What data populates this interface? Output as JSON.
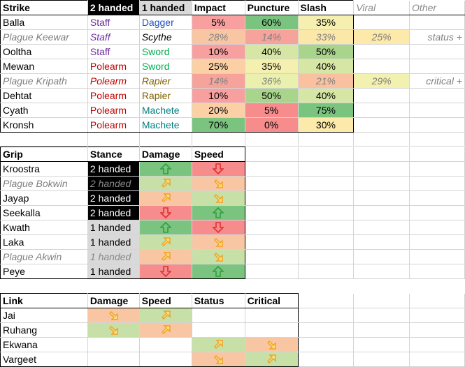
{
  "strike": {
    "headers": [
      "Strike",
      "2 handed",
      "1 handed",
      "Impact",
      "Puncture",
      "Slash",
      "Viral",
      "Other"
    ],
    "rows": [
      {
        "name": "Balla",
        "two": "Staff",
        "twoColor": "#7030a0",
        "one": "Dagger",
        "oneColor": "#1f4fbf",
        "impact": "5%",
        "impactBg": "#f8a0a0",
        "puncture": "60%",
        "punctureBg": "#7bc47f",
        "slash": "35%",
        "slashBg": "#f5f0b0",
        "viral": "",
        "viralBg": "",
        "other": "",
        "italic": false
      },
      {
        "name": "Plague Keewar",
        "two": "Staff",
        "twoColor": "#7030a0",
        "one": "Scythe",
        "oneColor": "#000000",
        "impact": "28%",
        "impactBg": "#f9c6a3",
        "puncture": "14%",
        "punctureBg": "#f6a39c",
        "slash": "33%",
        "slashBg": "#fbe8a8",
        "viral": "25%",
        "viralBg": "#fde9a9",
        "other": "status +",
        "italic": true
      },
      {
        "name": "Ooltha",
        "two": "Staff",
        "twoColor": "#7030a0",
        "one": "Sword",
        "oneColor": "#00b050",
        "impact": "10%",
        "impactBg": "#f8a0a0",
        "puncture": "40%",
        "punctureBg": "#d6e6a4",
        "slash": "50%",
        "slashBg": "#a9d48c",
        "viral": "",
        "viralBg": "",
        "other": "",
        "italic": false
      },
      {
        "name": "Mewan",
        "two": "Polearm",
        "twoColor": "#c00000",
        "one": "Sword",
        "oneColor": "#00b050",
        "impact": "25%",
        "impactBg": "#fbd0a5",
        "puncture": "35%",
        "punctureBg": "#f5f0b0",
        "slash": "40%",
        "slashBg": "#d6e6a4",
        "viral": "",
        "viralBg": "",
        "other": "",
        "italic": false
      },
      {
        "name": "Plague Kripath",
        "two": "Polearm",
        "twoColor": "#c00000",
        "one": "Rapier",
        "oneColor": "#7f6000",
        "impact": "14%",
        "impactBg": "#f6a39c",
        "puncture": "36%",
        "punctureBg": "#eaf0ad",
        "slash": "21%",
        "slashBg": "#f9c1a0",
        "viral": "29%",
        "viralBg": "#f3f1b0",
        "other": "critical +",
        "italic": true
      },
      {
        "name": "Dehtat",
        "two": "Polearm",
        "twoColor": "#c00000",
        "one": "Rapier",
        "oneColor": "#7f6000",
        "impact": "10%",
        "impactBg": "#f8a0a0",
        "puncture": "50%",
        "punctureBg": "#a9d48c",
        "slash": "40%",
        "slashBg": "#d6e6a4",
        "viral": "",
        "viralBg": "",
        "other": "",
        "italic": false
      },
      {
        "name": "Cyath",
        "two": "Polearm",
        "twoColor": "#c00000",
        "one": "Machete",
        "oneColor": "#008080",
        "impact": "20%",
        "impactBg": "#fbd0a5",
        "puncture": "5%",
        "punctureBg": "#f68c8c",
        "slash": "75%",
        "slashBg": "#7bc47f",
        "viral": "",
        "viralBg": "",
        "other": "",
        "italic": false
      },
      {
        "name": "Kronsh",
        "two": "Polearm",
        "twoColor": "#c00000",
        "one": "Machete",
        "oneColor": "#008080",
        "impact": "70%",
        "impactBg": "#7bc47f",
        "puncture": "0%",
        "punctureBg": "#f68c8c",
        "slash": "30%",
        "slashBg": "#fde9a9",
        "viral": "",
        "viralBg": "",
        "other": "",
        "italic": false
      }
    ]
  },
  "grip": {
    "headers": [
      "Grip",
      "Stance",
      "Damage",
      "Speed"
    ],
    "rows": [
      {
        "name": "Kroostra",
        "stance": "2 handed",
        "dark": true,
        "damage": "up",
        "damageBg": "#7bc47f",
        "speed": "down",
        "speedBg": "#f68c8c",
        "italic": false
      },
      {
        "name": "Plague Bokwin",
        "stance": "2 handed",
        "dark": true,
        "damage": "upright",
        "damageBg": "#c6e0a8",
        "speed": "downright",
        "speedBg": "#f9c6a3",
        "italic": true
      },
      {
        "name": "Jayap",
        "stance": "2 handed",
        "dark": true,
        "damage": "upright",
        "damageBg": "#f9c6a3",
        "speed": "downright",
        "speedBg": "#c6e0a8",
        "italic": false
      },
      {
        "name": "Seekalla",
        "stance": "2 handed",
        "dark": true,
        "damage": "down",
        "damageBg": "#f68c8c",
        "speed": "up",
        "speedBg": "#7bc47f",
        "italic": false
      },
      {
        "name": "Kwath",
        "stance": "1 handed",
        "dark": false,
        "damage": "up",
        "damageBg": "#7bc47f",
        "speed": "down",
        "speedBg": "#f68c8c",
        "italic": false
      },
      {
        "name": "Laka",
        "stance": "1 handed",
        "dark": false,
        "damage": "upright",
        "damageBg": "#c6e0a8",
        "speed": "downright",
        "speedBg": "#f9c6a3",
        "italic": false
      },
      {
        "name": "Plague Akwin",
        "stance": "1 handed",
        "dark": false,
        "damage": "upright",
        "damageBg": "#f9c6a3",
        "speed": "downright",
        "speedBg": "#c6e0a8",
        "italic": true
      },
      {
        "name": "Peye",
        "stance": "1 handed",
        "dark": false,
        "damage": "down",
        "damageBg": "#f68c8c",
        "speed": "up",
        "speedBg": "#7bc47f",
        "italic": false
      }
    ]
  },
  "link": {
    "headers": [
      "Link",
      "Damage",
      "Speed",
      "Status",
      "Critical"
    ],
    "rows": [
      {
        "name": "Jai",
        "damage": "downright",
        "damageBg": "#f9c6a3",
        "speed": "upright",
        "speedBg": "#c6e0a8",
        "status": "",
        "statusBg": "",
        "critical": "",
        "criticalBg": ""
      },
      {
        "name": "Ruhang",
        "damage": "downright",
        "damageBg": "#c6e0a8",
        "speed": "upright",
        "speedBg": "#f9c6a3",
        "status": "",
        "statusBg": "",
        "critical": "",
        "criticalBg": ""
      },
      {
        "name": "Ekwana",
        "damage": "",
        "damageBg": "",
        "speed": "",
        "speedBg": "",
        "status": "upright",
        "statusBg": "#c6e0a8",
        "critical": "downright",
        "criticalBg": "#f9c6a3"
      },
      {
        "name": "Vargeet",
        "damage": "",
        "damageBg": "",
        "speed": "",
        "speedBg": "",
        "status": "downright",
        "statusBg": "#f9c6a3",
        "critical": "upright",
        "criticalBg": "#c6e0a8"
      }
    ]
  }
}
